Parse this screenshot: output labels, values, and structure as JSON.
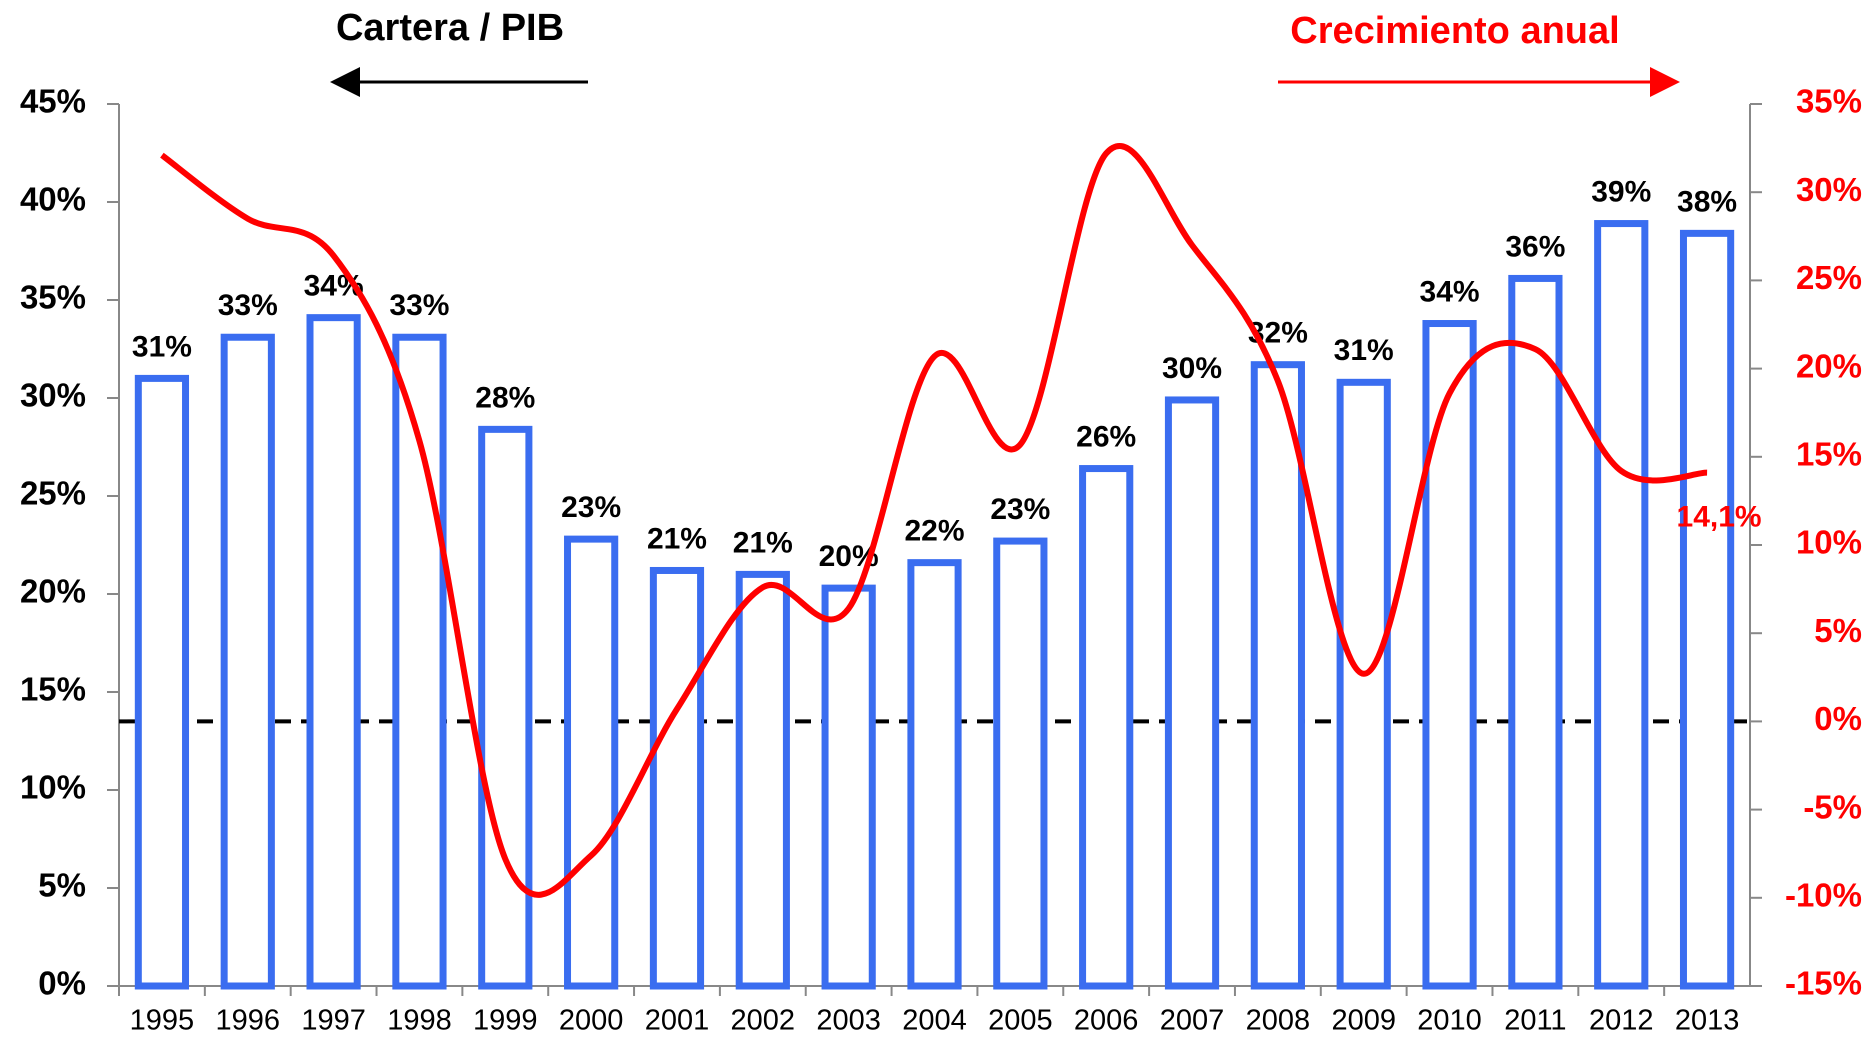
{
  "chart_data": {
    "type": "bar_line",
    "annotations": [
      "Cartera / PIB",
      "Crecimiento anual"
    ],
    "categories": [
      "1995",
      "1996",
      "1997",
      "1998",
      "1999",
      "2000",
      "2001",
      "2002",
      "2003",
      "2004",
      "2005",
      "2006",
      "2007",
      "2008",
      "2009",
      "2010",
      "2011",
      "2012",
      "2013"
    ],
    "series": [
      {
        "type": "bar",
        "color": "#3a6df0",
        "axis": "y",
        "values": [
          31.0,
          33.1,
          34.1,
          33.1,
          28.4,
          22.8,
          21.2,
          21.0,
          20.3,
          21.6,
          22.7,
          26.4,
          29.9,
          31.7,
          30.8,
          33.8,
          36.1,
          38.9,
          38.4
        ],
        "value_labels": [
          "31%",
          "33%",
          "34%",
          "33%",
          "28%",
          "23%",
          "21%",
          "21%",
          "20%",
          "22%",
          "23%",
          "26%",
          "30%",
          "32%",
          "31%",
          "34%",
          "36%",
          "39%",
          "38%"
        ]
      },
      {
        "type": "line",
        "color": "#ff0000",
        "axis": "y2",
        "values": [
          32.1,
          28.5,
          26.4,
          15.9,
          -7.8,
          -7.6,
          0.7,
          7.6,
          6.4,
          20.7,
          15.7,
          32.2,
          27.0,
          19.3,
          2.7,
          18.6,
          21.1,
          14.2,
          14.1
        ],
        "value_labels": [
          null,
          null,
          null,
          null,
          null,
          null,
          null,
          null,
          null,
          null,
          null,
          null,
          null,
          null,
          null,
          null,
          null,
          null,
          "14,1%"
        ]
      }
    ],
    "ylim": [
      0,
      45
    ],
    "yticks": [
      {
        "value": 0,
        "label": "0%"
      },
      {
        "value": 5,
        "label": "5%"
      },
      {
        "value": 10,
        "label": "10%"
      },
      {
        "value": 15,
        "label": "15%"
      },
      {
        "value": 20,
        "label": "20%"
      },
      {
        "value": 25,
        "label": "25%"
      },
      {
        "value": 30,
        "label": "30%"
      },
      {
        "value": 35,
        "label": "35%"
      },
      {
        "value": 40,
        "label": "40%"
      },
      {
        "value": 45,
        "label": "45%"
      }
    ],
    "y2lim": [
      -15,
      35
    ],
    "y2ticks": [
      {
        "value": -15,
        "label": "-15%"
      },
      {
        "value": -10,
        "label": "-10%"
      },
      {
        "value": -5,
        "label": "-5%"
      },
      {
        "value": 0,
        "label": "0%"
      },
      {
        "value": 5,
        "label": "5%"
      },
      {
        "value": 10,
        "label": "10%"
      },
      {
        "value": 15,
        "label": "15%"
      },
      {
        "value": 20,
        "label": "20%"
      },
      {
        "value": 25,
        "label": "25%"
      },
      {
        "value": 30,
        "label": "30%"
      },
      {
        "value": 35,
        "label": "35%"
      }
    ],
    "y2_reference_line": 0
  }
}
